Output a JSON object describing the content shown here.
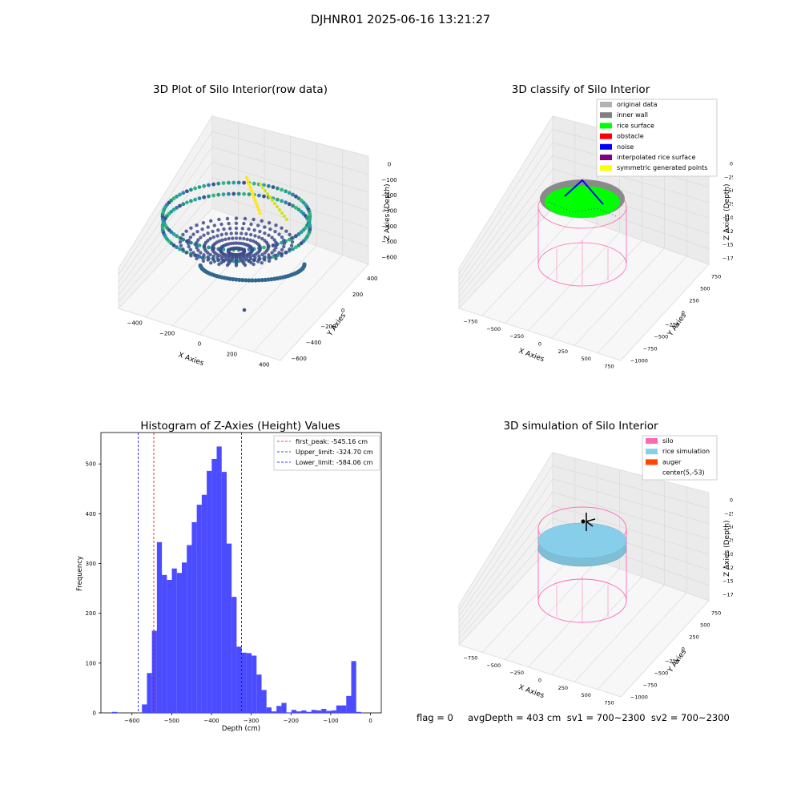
{
  "figure": {
    "suptitle": "DJHNR01 2025-06-16 13:21:27",
    "status_line": "flag = 0     avgDepth = 403 cm  sv1 = 700~2300  sv2 = 700~2300"
  },
  "chart_data": [
    {
      "type": "scatter",
      "projection": "3d",
      "title": "3D Plot of Silo Interior(row data)",
      "xlabel": "X Axies",
      "ylabel": "Y Axies",
      "zlabel": "Z Axies (Depth)",
      "x_ticks": [
        "−400",
        "−200",
        "0",
        "200",
        "400"
      ],
      "y_ticks": [
        "−600",
        "−400",
        "−200",
        "0",
        "200",
        "400"
      ],
      "z_ticks": [
        "0",
        "−100",
        "−200",
        "−300",
        "−400",
        "−500",
        "−600"
      ],
      "xlim": [
        -500,
        500
      ],
      "ylim": [
        -600,
        450
      ],
      "zlim": [
        -700,
        0
      ],
      "colormap": "viridis",
      "description_of_data": "Ring of points near silo wall plus a cone-shaped rice surface; yellow spike near top",
      "series": [
        {
          "name": "",
          "x": [
            -350,
            -250,
            0,
            250,
            350,
            0,
            0
          ],
          "y": [
            0,
            250,
            350,
            250,
            0,
            -350,
            -250
          ],
          "z": [
            -280,
            -280,
            -280,
            -280,
            -280,
            -280,
            -540
          ]
        }
      ]
    },
    {
      "type": "scatter",
      "projection": "3d",
      "title": "3D classify of Silo Interior",
      "zlabel": "Z Axies (Depth)",
      "xlabel": "X Axies",
      "ylabel": "Y Axies",
      "x_ticks": [
        "−750",
        "−500",
        "−250",
        "0",
        "250",
        "500",
        "750"
      ],
      "y_ticks": [
        "−1000",
        "−750",
        "−500",
        "−250",
        "0",
        "250",
        "500",
        "750"
      ],
      "z_ticks": [
        "0",
        "−250",
        "−500",
        "−750",
        "−1000",
        "−1250",
        "−1500",
        "−1750"
      ],
      "legend": [
        {
          "label": "original data",
          "color": "#b3b3b3"
        },
        {
          "label": "inner wall",
          "color": "#808080"
        },
        {
          "label": "rice surface",
          "color": "#00ff00"
        },
        {
          "label": "obstacle",
          "color": "#ff0000"
        },
        {
          "label": "noise",
          "color": "#0000ff"
        },
        {
          "label": "interpolated rice surface",
          "color": "#800080"
        },
        {
          "label": "symmetric generated points",
          "color": "#ffff00"
        }
      ],
      "legend_loc": "upper right"
    },
    {
      "type": "bar",
      "title": "Histogram of Z-Axies (Height) Values",
      "xlabel": "Depth (cm)",
      "ylabel": "Frequency",
      "x_ticks": [
        -600,
        -500,
        -400,
        -300,
        -200,
        -100,
        0
      ],
      "x_tick_labels": [
        "−600",
        "−500",
        "−400",
        "−300",
        "−200",
        "−100",
        "0"
      ],
      "y_ticks": [
        0,
        100,
        200,
        300,
        400,
        500
      ],
      "xlim": [
        -678,
        27
      ],
      "ylim": [
        0,
        563
      ],
      "bar_color": "#4b4bff",
      "bin_width": 12.53,
      "bin_start": -650,
      "values": [
        2,
        0,
        0,
        0,
        0,
        0,
        17,
        80,
        165,
        343,
        277,
        267,
        290,
        281,
        302,
        337,
        383,
        418,
        438,
        486,
        510,
        535,
        484,
        340,
        233,
        133,
        121,
        120,
        115,
        77,
        46,
        11,
        3,
        14,
        20,
        1,
        6,
        3,
        5,
        2,
        6,
        5,
        8,
        4,
        5,
        15,
        15,
        34,
        104,
        2
      ],
      "vlines": [
        {
          "name": "first_peak: -545.16 cm",
          "x": -545.16,
          "color": "#ff0000"
        },
        {
          "name": "Upper_limit: -324.70 cm",
          "x": -324.7,
          "color": "#0000ff"
        },
        {
          "name": "Lower_limit: -584.06 cm",
          "x": -584.06,
          "color": "#0000ff"
        }
      ],
      "legend_loc": "upper right"
    },
    {
      "type": "surface",
      "projection": "3d",
      "title": "3D simulation of Silo Interior",
      "xlabel": "X Axies",
      "ylabel": "Y Axies",
      "zlabel": "Z Axies (Depth)",
      "x_ticks": [
        "−750",
        "−500",
        "−250",
        "0",
        "250",
        "500",
        "750"
      ],
      "y_ticks": [
        "−1000",
        "−750",
        "−500",
        "−250",
        "0",
        "250",
        "500",
        "750"
      ],
      "z_ticks": [
        "0",
        "−250",
        "−500",
        "−750",
        "−1000",
        "−1250",
        "−1500",
        "−1750"
      ],
      "legend": [
        {
          "label": "silo",
          "color": "#ff69b4"
        },
        {
          "label": "rice simulation",
          "color": "#87ceeb"
        },
        {
          "label": "auger",
          "color": "#ff4500"
        },
        {
          "label": "center(5,-53)",
          "color": "#ffffff"
        }
      ],
      "legend_loc": "upper right"
    }
  ]
}
